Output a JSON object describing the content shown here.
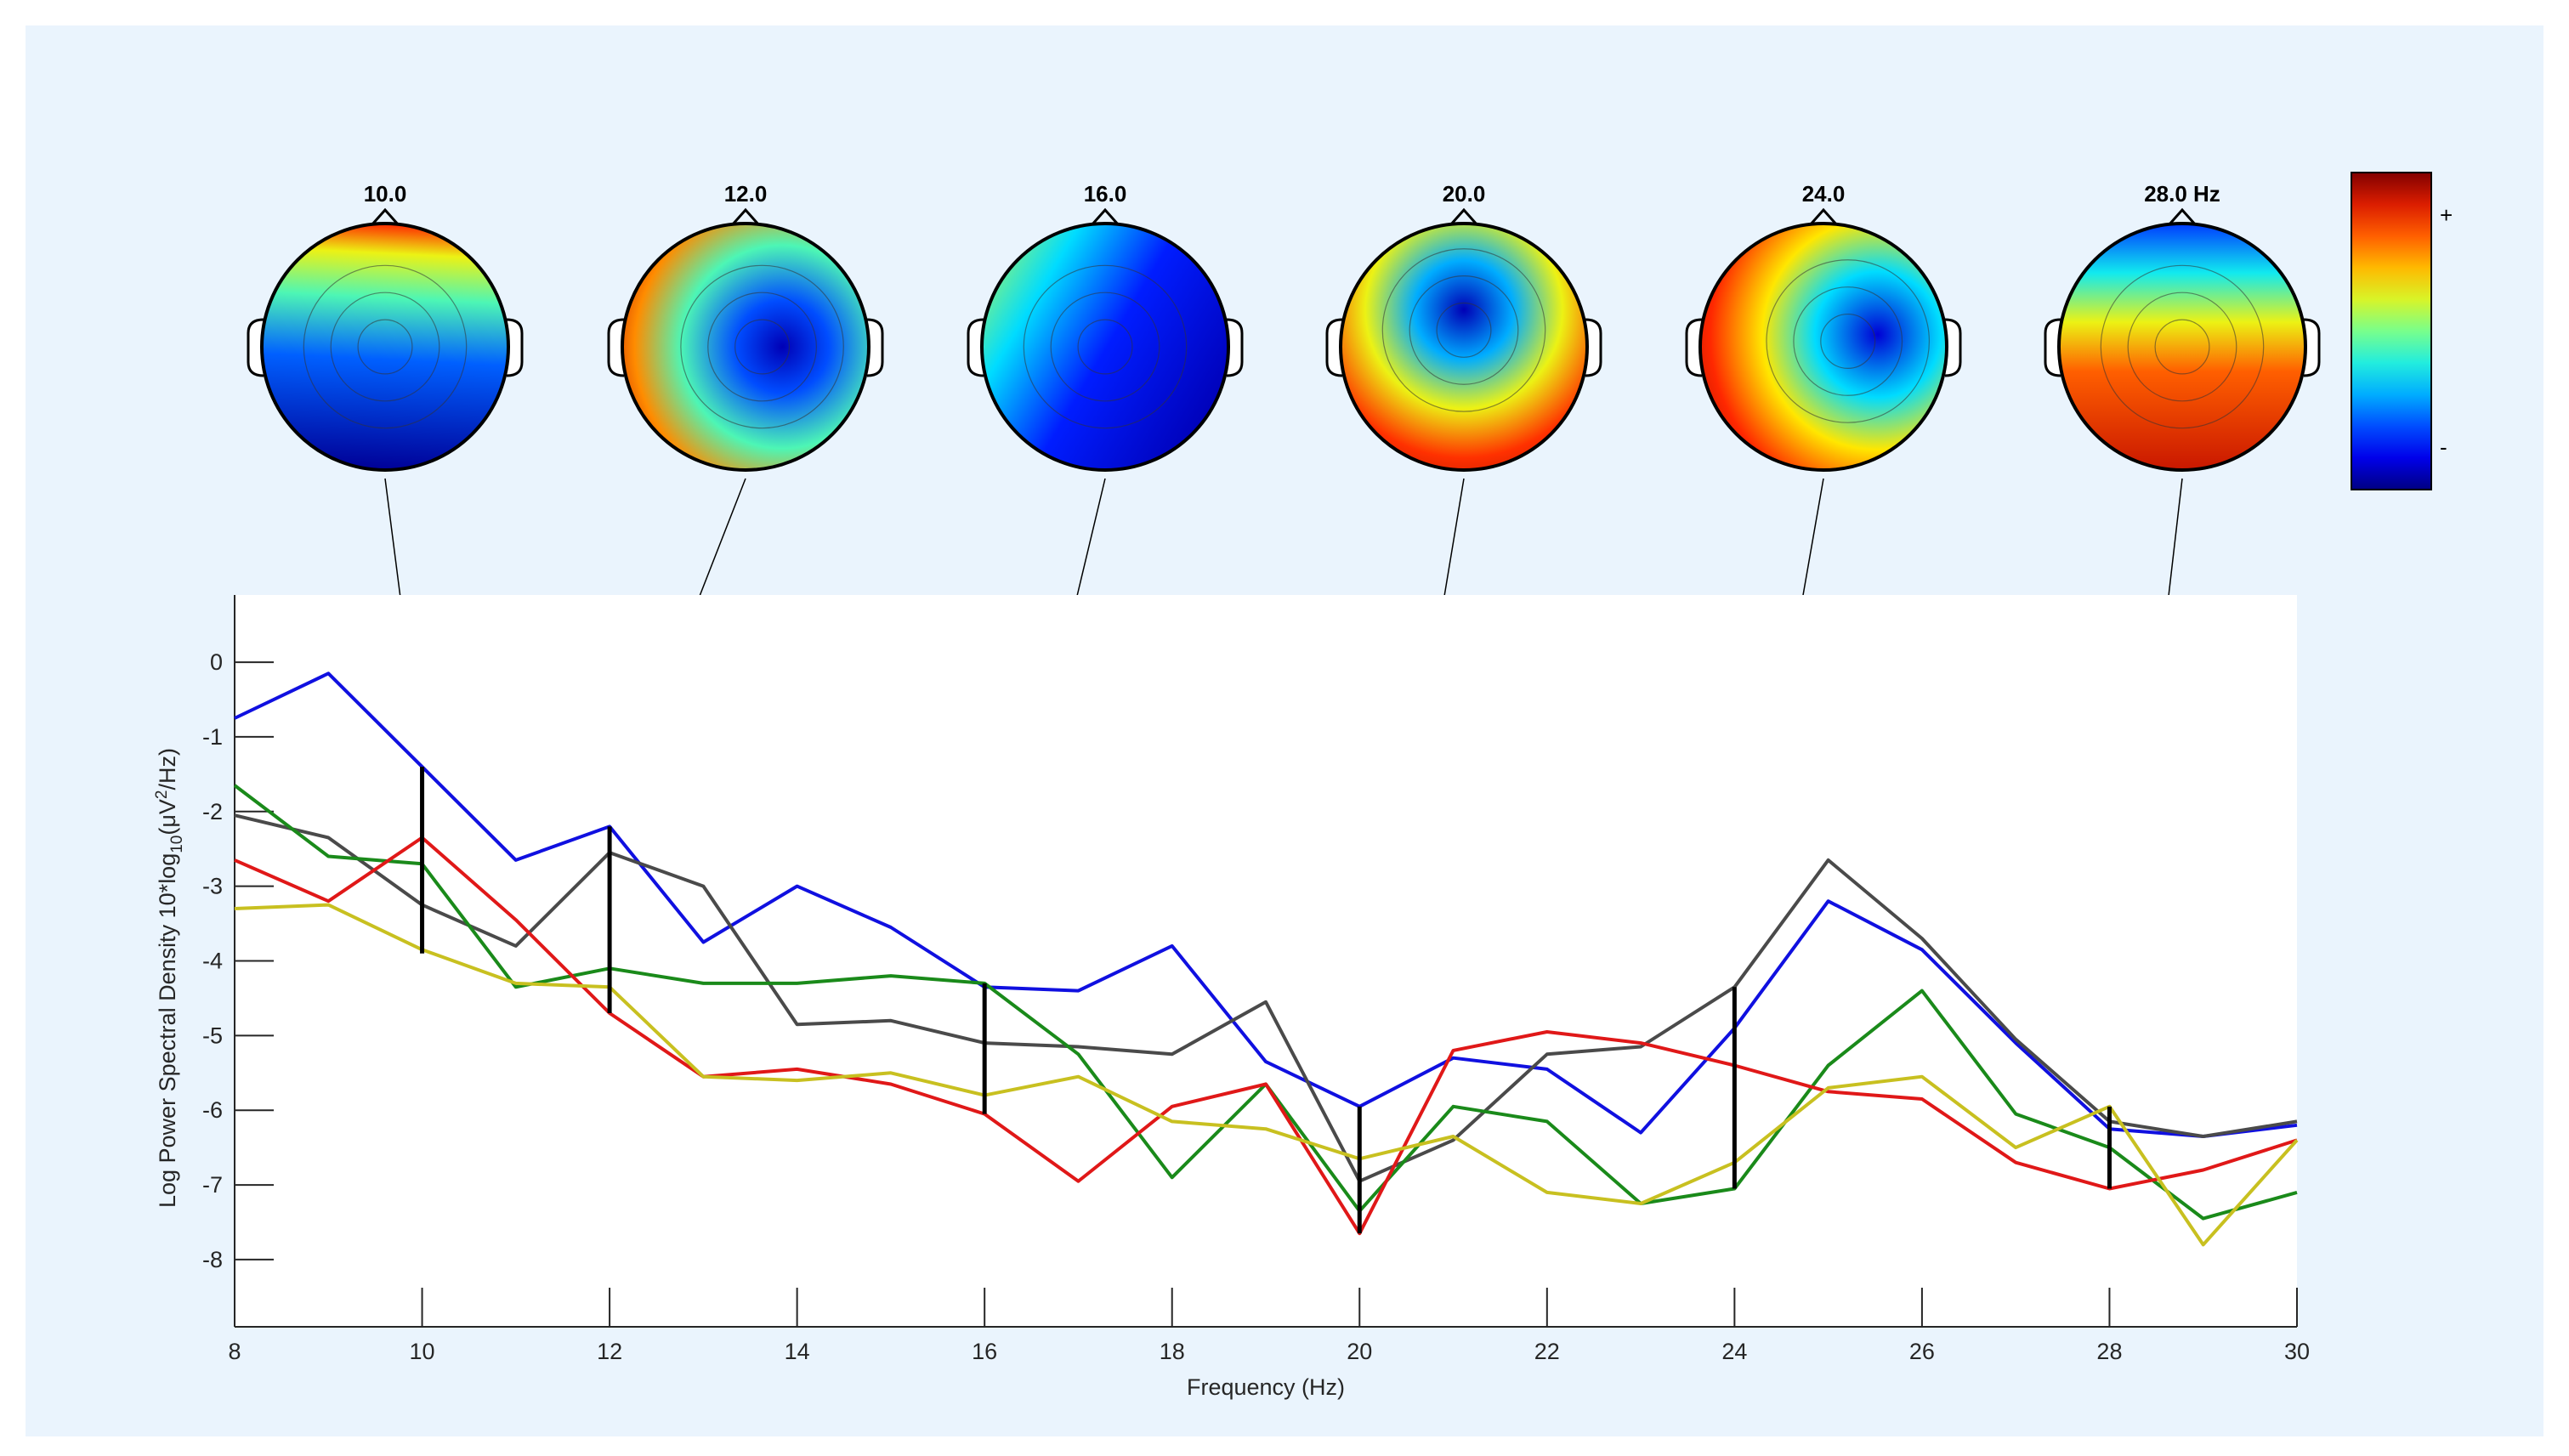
{
  "chart_data": {
    "type": "line",
    "xlabel": "Frequency (Hz)",
    "ylabel_prefix": "Log Power Spectral Density 10*log",
    "ylabel_sub": "10",
    "ylabel_mid": "(",
    "ylabel_mu": "μ",
    "ylabel_unit": "V",
    "ylabel_sup": "2",
    "ylabel_suffix": "/Hz)",
    "xlim": [
      8,
      30
    ],
    "ylim": [
      -8.9,
      0.9
    ],
    "xticks": [
      "8",
      "10",
      "12",
      "14",
      "16",
      "18",
      "20",
      "22",
      "24",
      "26",
      "28",
      "30"
    ],
    "yticks": [
      "0",
      "-1",
      "-2",
      "-3",
      "-4",
      "-5",
      "-6",
      "-7",
      "-8"
    ],
    "x": [
      8,
      9,
      10,
      11,
      12,
      13,
      14,
      15,
      16,
      17,
      18,
      19,
      20,
      21,
      22,
      23,
      24,
      25,
      26,
      27,
      28,
      29,
      30
    ],
    "series": [
      {
        "name": "blue",
        "color": "#1010e0",
        "values": [
          -0.75,
          -0.15,
          -1.4,
          -2.65,
          -2.2,
          -3.75,
          -3.0,
          -3.55,
          -4.35,
          -4.4,
          -3.8,
          -5.35,
          -5.95,
          -5.3,
          -5.45,
          -6.3,
          -4.9,
          -3.2,
          -3.85,
          -5.1,
          -6.25,
          -6.35,
          -6.2
        ]
      },
      {
        "name": "gray",
        "color": "#4a4a4a",
        "values": [
          -2.05,
          -2.35,
          -3.25,
          -3.8,
          -2.55,
          -3.0,
          -4.85,
          -4.8,
          -5.1,
          -5.15,
          -5.25,
          -4.55,
          -6.95,
          -6.4,
          -5.25,
          -5.15,
          -4.35,
          -2.65,
          -3.7,
          -5.05,
          -6.15,
          -6.35,
          -6.15
        ]
      },
      {
        "name": "green",
        "color": "#1a8a1a",
        "values": [
          -1.65,
          -2.6,
          -2.7,
          -4.35,
          -4.1,
          -4.3,
          -4.3,
          -4.2,
          -4.3,
          -5.25,
          -6.9,
          -5.65,
          -7.35,
          -5.95,
          -6.15,
          -7.25,
          -7.05,
          -5.4,
          -4.4,
          -6.05,
          -6.5,
          -7.45,
          -7.1
        ]
      },
      {
        "name": "red",
        "color": "#e01818",
        "values": [
          -2.65,
          -3.2,
          -2.35,
          -3.45,
          -4.7,
          -5.55,
          -5.45,
          -5.65,
          -6.05,
          -6.95,
          -5.95,
          -5.65,
          -7.65,
          -5.2,
          -4.95,
          -5.1,
          -5.4,
          -5.75,
          -5.85,
          -6.7,
          -7.05,
          -6.8,
          -6.4
        ]
      },
      {
        "name": "yellow",
        "color": "#c8c020",
        "values": [
          -3.3,
          -3.25,
          -3.85,
          -4.3,
          -4.35,
          -5.55,
          -5.6,
          -5.5,
          -5.8,
          -5.55,
          -6.15,
          -6.25,
          -6.65,
          -6.35,
          -7.1,
          -7.25,
          -6.7,
          -5.7,
          -5.55,
          -6.5,
          -5.95,
          -7.8,
          -6.4
        ]
      }
    ],
    "markers": [
      {
        "freq": 10,
        "ymin": -3.9,
        "ymax": -1.4
      },
      {
        "freq": 12,
        "ymin": -4.7,
        "ymax": -2.2
      },
      {
        "freq": 16,
        "ymin": -6.05,
        "ymax": -4.3
      },
      {
        "freq": 20,
        "ymin": -7.65,
        "ymax": -5.95
      },
      {
        "freq": 24,
        "ymin": -7.05,
        "ymax": -4.35
      },
      {
        "freq": 28,
        "ymin": -7.05,
        "ymax": -5.95
      }
    ]
  },
  "topomaps": [
    {
      "label": "10.0",
      "pattern": "front-hot",
      "freq": 10
    },
    {
      "label": "12.0",
      "pattern": "center-cold-right",
      "freq": 12
    },
    {
      "label": "16.0",
      "pattern": "right-cold",
      "freq": 16
    },
    {
      "label": "20.0",
      "pattern": "center-cold-top",
      "freq": 20
    },
    {
      "label": "24.0",
      "pattern": "left-hot-right-cold",
      "freq": 24
    },
    {
      "label": "28.0 Hz",
      "pattern": "back-hot",
      "freq": 28
    }
  ],
  "colorbar": {
    "plus_label": "+",
    "minus_label": "-"
  }
}
